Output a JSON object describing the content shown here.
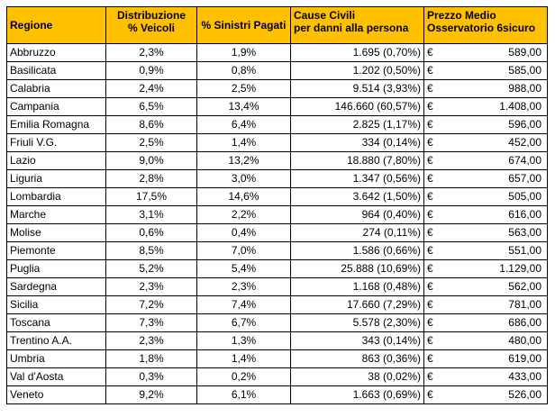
{
  "headers": {
    "regione": "Regione",
    "distribuzione_line1": "Distribuzione",
    "distribuzione_line2": "% Veicoli",
    "sinistri": "% Sinistri Pagati",
    "cause_line1": "Cause Civili",
    "cause_line2": "per danni alla persona",
    "prezzo_line1": "Prezzo Medio",
    "prezzo_line2": "Osservatorio 6sicuro"
  },
  "currency_symbol": "€",
  "rows": [
    {
      "regione": "Abbruzzo",
      "veicoli": "2,3%",
      "sinistri": "1,9%",
      "cause": "1.695 (0,70%)",
      "prezzo": "589,00"
    },
    {
      "regione": "Basilicata",
      "veicoli": "0,9%",
      "sinistri": "0,8%",
      "cause": "1.202 (0,50%)",
      "prezzo": "585,00"
    },
    {
      "regione": "Calabria",
      "veicoli": "2,4%",
      "sinistri": "2,5%",
      "cause": "9.514 (3,93%)",
      "prezzo": "988,00"
    },
    {
      "regione": "Campania",
      "veicoli": "6,5%",
      "sinistri": "13,4%",
      "cause": "146.660 (60,57%)",
      "prezzo": "1.408,00"
    },
    {
      "regione": "Emilia Romagna",
      "veicoli": "8,6%",
      "sinistri": "6,4%",
      "cause": "2.825 (1,17%)",
      "prezzo": "596,00"
    },
    {
      "regione": "Friuli V.G.",
      "veicoli": "2,5%",
      "sinistri": "1,4%",
      "cause": "334 (0,14%)",
      "prezzo": "452,00"
    },
    {
      "regione": "Lazio",
      "veicoli": "9,0%",
      "sinistri": "13,2%",
      "cause": "18.880 (7,80%)",
      "prezzo": "674,00"
    },
    {
      "regione": "Liguria",
      "veicoli": "2,8%",
      "sinistri": "3,0%",
      "cause": "1.347 (0,56%)",
      "prezzo": "657,00"
    },
    {
      "regione": "Lombardia",
      "veicoli": "17,5%",
      "sinistri": "14,6%",
      "cause": "3.642 (1,50%)",
      "prezzo": "505,00"
    },
    {
      "regione": "Marche",
      "veicoli": "3,1%",
      "sinistri": "2,2%",
      "cause": "964 (0,40%)",
      "prezzo": "616,00"
    },
    {
      "regione": "Molise",
      "veicoli": "0,6%",
      "sinistri": "0,4%",
      "cause": "274 (0,11%)",
      "prezzo": "563,00"
    },
    {
      "regione": "Piemonte",
      "veicoli": "8,5%",
      "sinistri": "7,0%",
      "cause": "1.586 (0,66%)",
      "prezzo": "551,00"
    },
    {
      "regione": "Puglia",
      "veicoli": "5,2%",
      "sinistri": "5,4%",
      "cause": "25.888 (10,69%)",
      "prezzo": "1.129,00"
    },
    {
      "regione": "Sardegna",
      "veicoli": "2,3%",
      "sinistri": "2,3%",
      "cause": "1.168 (0,48%)",
      "prezzo": "562,00"
    },
    {
      "regione": "Sicilia",
      "veicoli": "7,2%",
      "sinistri": "7,4%",
      "cause": "17.660 (7,29%)",
      "prezzo": "781,00"
    },
    {
      "regione": "Toscana",
      "veicoli": "7,3%",
      "sinistri": "6,7%",
      "cause": "5.578 (2,30%)",
      "prezzo": "686,00"
    },
    {
      "regione": "Trentino A.A.",
      "veicoli": "2,3%",
      "sinistri": "1,3%",
      "cause": "343 (0,14%)",
      "prezzo": "480,00"
    },
    {
      "regione": "Umbria",
      "veicoli": "1,8%",
      "sinistri": "1,4%",
      "cause": "863 (0,36%)",
      "prezzo": "619,00"
    },
    {
      "regione": "Val d'Aosta",
      "veicoli": "0,3%",
      "sinistri": "0,2%",
      "cause": "38 (0,02%)",
      "prezzo": "433,00"
    },
    {
      "regione": "Veneto",
      "veicoli": "9,2%",
      "sinistri": "6,1%",
      "cause": "1.663 (0,69%)",
      "prezzo": "526,00"
    }
  ]
}
